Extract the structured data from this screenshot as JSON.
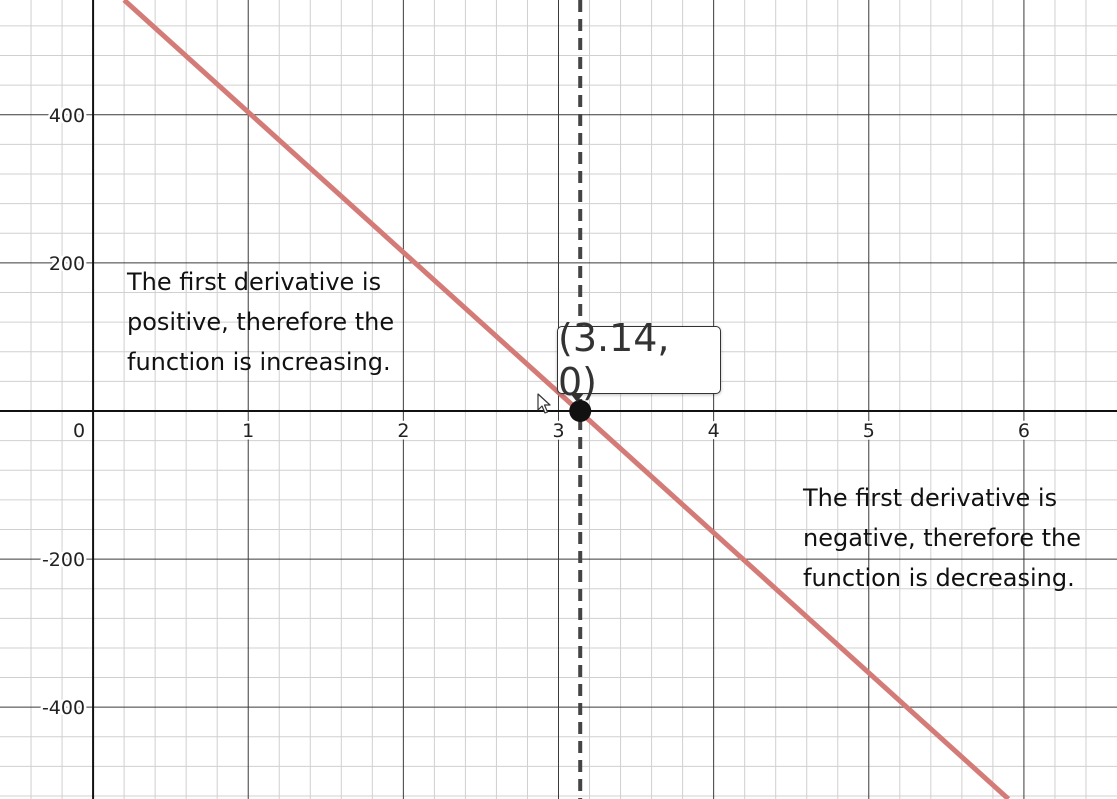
{
  "chart_data": {
    "type": "line",
    "xlim": [
      -0.6,
      6.6
    ],
    "ylim": [
      -524,
      555
    ],
    "x_ticks": [
      {
        "value": 1,
        "label": "1"
      },
      {
        "value": 2,
        "label": "2"
      },
      {
        "value": 3,
        "label": "3"
      },
      {
        "value": 4,
        "label": "4"
      },
      {
        "value": 5,
        "label": "5"
      },
      {
        "value": 6,
        "label": "6"
      }
    ],
    "y_ticks": [
      {
        "value": 400,
        "label": "400"
      },
      {
        "value": 200,
        "label": "200"
      },
      {
        "value": -200,
        "label": "-200"
      },
      {
        "value": -400,
        "label": "-400"
      }
    ],
    "origin_label": "0",
    "grid": true,
    "series": [
      {
        "x": [
          0.2,
          5.9
        ],
        "y": [
          555,
          -524
        ],
        "color": "#d47b78"
      }
    ],
    "vertical_line": {
      "x": 3.14,
      "style": "dashed",
      "color": "#444444"
    },
    "point": {
      "x": 3.14,
      "y": 0,
      "label": "(3.14, 0)"
    },
    "annotations": [
      {
        "id": "left",
        "text": "The first derivative is\npositive, therefore the\nfunction is increasing."
      },
      {
        "id": "right",
        "text": "The first derivative is\nnegative, therefore the\nfunction is decreasing."
      }
    ]
  },
  "icons": {
    "cursor": "arrow-cursor-icon"
  }
}
